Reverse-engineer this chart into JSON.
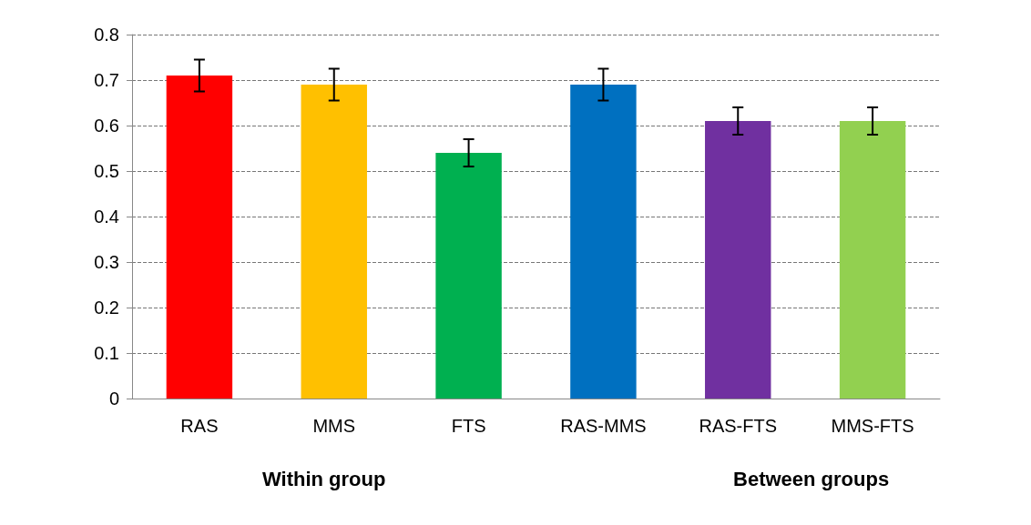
{
  "chart_data": {
    "type": "bar",
    "categories": [
      "RAS",
      "MMS",
      "FTS",
      "RAS-MMS",
      "RAS-FTS",
      "MMS-FTS"
    ],
    "values": [
      0.71,
      0.69,
      0.54,
      0.69,
      0.61,
      0.61
    ],
    "colors": [
      "#ff0000",
      "#ffc000",
      "#00b050",
      "#0070c0",
      "#7030a0",
      "#92d050"
    ],
    "errors": [
      0.035,
      0.035,
      0.03,
      0.035,
      0.03,
      0.03
    ],
    "ylim": [
      0,
      0.8
    ],
    "yticks": [
      0,
      0.1,
      0.2,
      0.3,
      0.4,
      0.5,
      0.6,
      0.7,
      0.8
    ],
    "grid": "y",
    "annotations": [
      "Within group",
      "Between groups"
    ]
  }
}
